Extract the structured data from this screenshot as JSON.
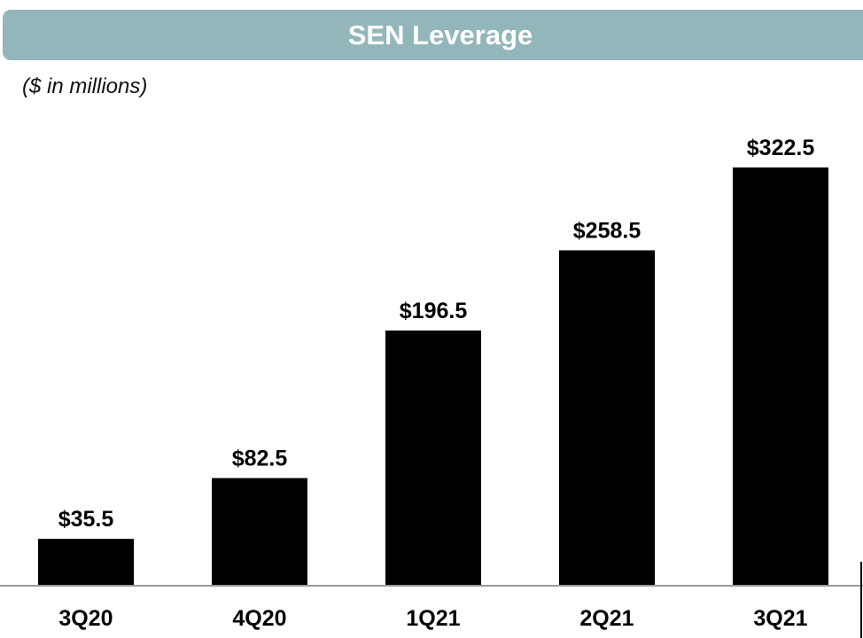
{
  "header": {
    "title": "SEN Leverage",
    "subtitle": "($ in millions)"
  },
  "colors": {
    "banner": "#93b6ba",
    "bar": "#000000",
    "axis": "#9a9a9a"
  },
  "chart_data": {
    "type": "bar",
    "title": "SEN Leverage",
    "subtitle": "($ in millions)",
    "xlabel": "",
    "ylabel": "",
    "categories": [
      "3Q20",
      "4Q20",
      "1Q21",
      "2Q21",
      "3Q21"
    ],
    "values": [
      35.5,
      82.5,
      196.5,
      258.5,
      322.5
    ],
    "data_labels": [
      "$35.5",
      "$82.5",
      "$196.5",
      "$258.5",
      "$322.5"
    ],
    "ylim": [
      0,
      340
    ],
    "grid": false,
    "legend": "none"
  }
}
